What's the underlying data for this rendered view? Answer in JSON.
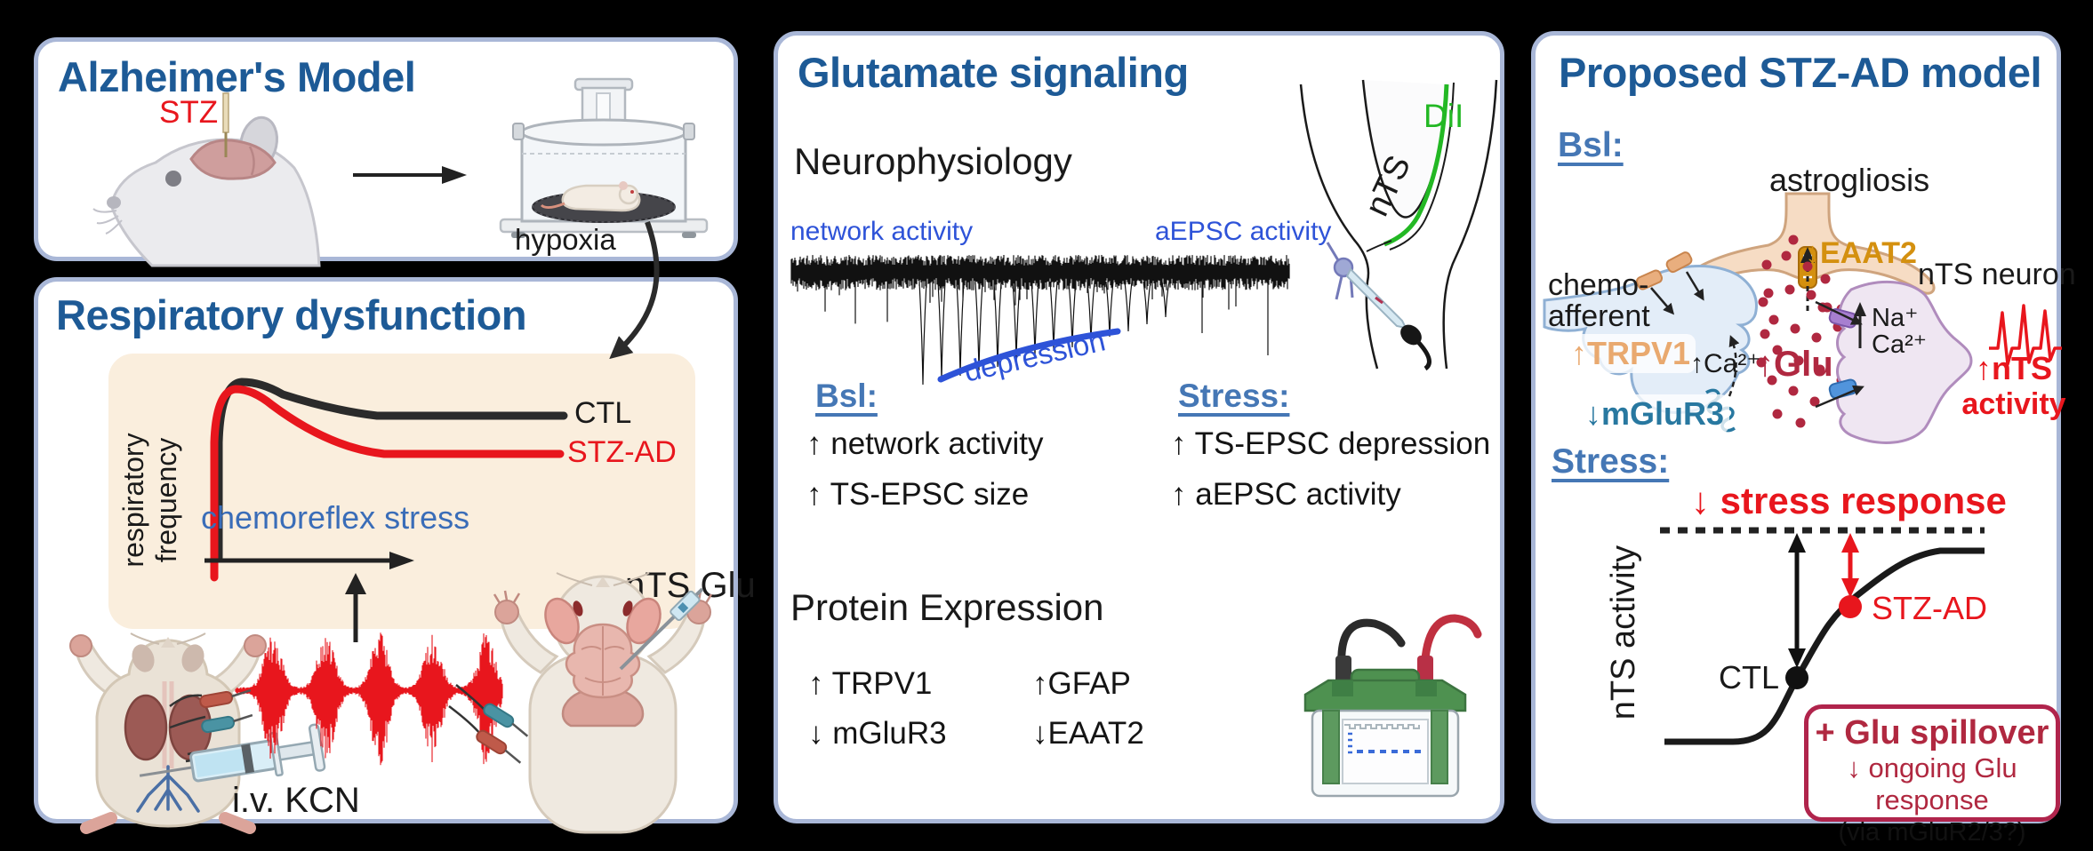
{
  "figure": {
    "background": "#000000"
  },
  "colors": {
    "panel_border": "#a9b7d7",
    "title_blue": "#1d5a96",
    "heading_blue": "#4577b5",
    "bright_blue": "#2e53d8",
    "mid_blue": "#3a6db8",
    "red": "#e8161d",
    "crimson": "#b02840",
    "orange": "#d4900f",
    "peach": "#e0975e",
    "teal": "#2878a0",
    "green": "#23b824",
    "beige": "#faeedd"
  },
  "panel_alzheimers": {
    "title": "Alzheimer's Model",
    "stz_label": "STZ",
    "hypoxia_label": "hypoxia"
  },
  "panel_respiratory": {
    "title": "Respiratory dysfunction",
    "y_axis_line1": "respiratory",
    "y_axis_line2": "frequency",
    "ctl_label": "CTL",
    "stz_ad_label": "STZ-AD",
    "x_axis_label": "chemoreflex stress",
    "iv_kcn_label": "i.v. KCN",
    "nts_glu_label": "nTS Glu"
  },
  "panel_glutamate": {
    "title": "Glutamate signaling",
    "neurophysiology_heading": "Neurophysiology",
    "network_activity_label": "network activity",
    "aepsc_activity_label": "aEPSC activity",
    "depression_label": "depression",
    "dii_label": "DiI",
    "nts_label": "nTS",
    "bsl_heading": "Bsl:",
    "bsl_items": [
      "↑ network activity",
      "↑ TS-EPSC size"
    ],
    "stress_heading": "Stress:",
    "stress_items": [
      "↑ TS-EPSC depression",
      "↑ aEPSC activity"
    ],
    "protein_heading": "Protein Expression",
    "protein_items_left": [
      "↑ TRPV1",
      "↓ mGluR3"
    ],
    "protein_items_right": [
      "↑GFAP",
      "↓EAAT2"
    ]
  },
  "panel_proposed": {
    "title": "Proposed STZ-AD model",
    "bsl_heading": "Bsl:",
    "astrogliosis_label": "astrogliosis",
    "eaat2_label": "↓EAAT2",
    "chemoafferent_line1": "chemo-",
    "chemoafferent_line2": "afferent",
    "trpv1_label": "↑TRPV1",
    "ca_presynaptic_label": "↑Ca²⁺",
    "mglur3_label": "↓mGluR3",
    "glu_label": "↑Glu",
    "na_postsynaptic_label": "Na⁺",
    "ca_postsynaptic_label": "Ca²⁺",
    "nts_neuron_label": "nTS neuron",
    "nts_activity_line1": "↑nTS",
    "nts_activity_line2": "activity",
    "stress_heading": "Stress:",
    "stress_response_label": "↓ stress response",
    "y_axis_label": "nTS activity",
    "ctl_label": "CTL",
    "stz_ad_label": "STZ-AD",
    "spillover_line1": "+ Glu spillover",
    "spillover_line2": "↓ ongoing Glu response",
    "spillover_line3": "(via mGluR2/3?)"
  }
}
